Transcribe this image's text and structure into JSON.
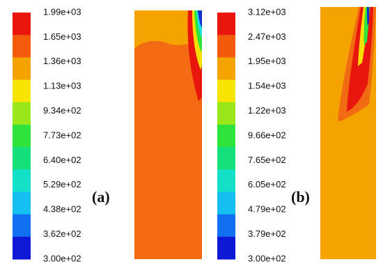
{
  "panels": [
    {
      "label": "(a)",
      "scale": [
        "1.99e+03",
        "1.65e+03",
        "1.36e+03",
        "1.13e+03",
        "9.34e+02",
        "7.73e+02",
        "6.40e+02",
        "5.29e+02",
        "4.38e+02",
        "3.62e+02",
        "3.00e+02"
      ]
    },
    {
      "label": "(b)",
      "scale": [
        "3.12e+03",
        "2.47e+03",
        "1.95e+03",
        "1.54e+03",
        "1.22e+03",
        "9.66e+02",
        "7.65e+02",
        "6.05e+02",
        "4.79e+02",
        "3.79e+02",
        "3.00e+02"
      ]
    }
  ]
}
